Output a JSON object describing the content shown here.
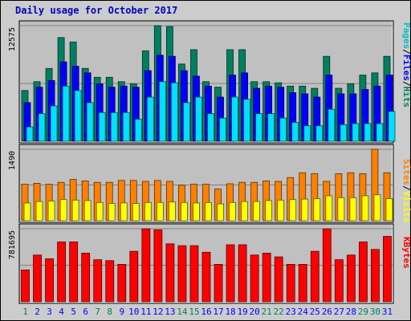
{
  "title": "Daily usage for October 2017",
  "chart_data": [
    {
      "type": "bar",
      "panel": "top",
      "title": "",
      "ylabel_max": "12575",
      "ylim": [
        0,
        12575
      ],
      "side_label": [
        "Pages",
        "/",
        "Files",
        "/",
        "Hits"
      ],
      "side_colors": [
        "#00c0c0",
        "#000000",
        "#0000ff",
        "#000000",
        "#008060"
      ],
      "categories": [
        "1",
        "2",
        "3",
        "4",
        "5",
        "6",
        "7",
        "8",
        "9",
        "10",
        "11",
        "12",
        "13",
        "14",
        "15",
        "16",
        "17",
        "18",
        "19",
        "20",
        "21",
        "22",
        "23",
        "24",
        "25",
        "26",
        "27",
        "28",
        "29",
        "30",
        "31"
      ],
      "category_colors": [
        "#008060",
        "#0000ff",
        "#0000ff",
        "#0000ff",
        "#0000ff",
        "#0000ff",
        "#008060",
        "#008060",
        "#0000ff",
        "#0000ff",
        "#0000ff",
        "#0000ff",
        "#0000ff",
        "#008060",
        "#008060",
        "#0000ff",
        "#0000ff",
        "#0000ff",
        "#0000ff",
        "#0000ff",
        "#008060",
        "#008060",
        "#0000ff",
        "#0000ff",
        "#0000ff",
        "#0000ff",
        "#0000ff",
        "#0000ff",
        "#008060",
        "#008060",
        "#0000ff"
      ],
      "series": [
        {
          "name": "Hits",
          "color": "#008060",
          "values": [
            5520,
            6480,
            7920,
            11280,
            10800,
            7920,
            6960,
            6960,
            6480,
            6240,
            9840,
            12575,
            12480,
            8400,
            9960,
            6480,
            5880,
            9960,
            9960,
            6480,
            6480,
            6360,
            6000,
            6000,
            5760,
            9240,
            5760,
            6240,
            7200,
            7440,
            9240
          ]
        },
        {
          "name": "Files",
          "color": "#0000ff",
          "values": [
            4200,
            5880,
            6600,
            8640,
            8160,
            7440,
            6240,
            5880,
            6000,
            5880,
            7680,
            9360,
            9240,
            7680,
            7080,
            6000,
            4800,
            7200,
            7440,
            5760,
            6000,
            5880,
            5280,
            5160,
            4800,
            7200,
            5160,
            5160,
            5640,
            6000,
            7200
          ]
        },
        {
          "name": "Pages",
          "color": "#00e0ff",
          "values": [
            1560,
            3000,
            3840,
            6000,
            5520,
            4200,
            3120,
            3120,
            3120,
            2400,
            4800,
            6480,
            6360,
            4200,
            4800,
            3000,
            2520,
            4800,
            4560,
            3000,
            3000,
            2520,
            2040,
            1680,
            1680,
            3480,
            1800,
            1920,
            1920,
            1920,
            3240
          ]
        }
      ]
    },
    {
      "type": "bar",
      "panel": "middle",
      "title": "",
      "ylabel_max": "1490",
      "ylim": [
        0,
        1490
      ],
      "side_label": [
        "Sites",
        "/",
        "Visits"
      ],
      "side_colors": [
        "#ff8000",
        "#000000",
        "#ffff00"
      ],
      "categories": [
        "1",
        "2",
        "3",
        "4",
        "5",
        "6",
        "7",
        "8",
        "9",
        "10",
        "11",
        "12",
        "13",
        "14",
        "15",
        "16",
        "17",
        "18",
        "19",
        "20",
        "21",
        "22",
        "23",
        "24",
        "25",
        "26",
        "27",
        "28",
        "29",
        "30",
        "31"
      ],
      "series": [
        {
          "name": "Sites",
          "color": "#ff8000",
          "values": [
            760,
            780,
            760,
            800,
            860,
            830,
            800,
            800,
            840,
            840,
            820,
            840,
            820,
            740,
            760,
            760,
            660,
            770,
            800,
            800,
            830,
            820,
            900,
            1000,
            980,
            820,
            980,
            1000,
            980,
            1490,
            1000
          ]
        },
        {
          "name": "Visits",
          "color": "#ffff00",
          "values": [
            370,
            400,
            410,
            440,
            430,
            420,
            380,
            360,
            370,
            360,
            380,
            380,
            390,
            380,
            370,
            380,
            350,
            380,
            400,
            400,
            420,
            430,
            440,
            450,
            460,
            520,
            480,
            480,
            520,
            540,
            460
          ]
        }
      ]
    },
    {
      "type": "bar",
      "panel": "bottom",
      "title": "",
      "ylabel_max": "781695",
      "ylim": [
        0,
        781695
      ],
      "side_label": [
        "KBytes"
      ],
      "side_colors": [
        "#ff0000"
      ],
      "categories": [
        "1",
        "2",
        "3",
        "4",
        "5",
        "6",
        "7",
        "8",
        "9",
        "10",
        "11",
        "12",
        "13",
        "14",
        "15",
        "16",
        "17",
        "18",
        "19",
        "20",
        "21",
        "22",
        "23",
        "24",
        "25",
        "26",
        "27",
        "28",
        "29",
        "30",
        "31"
      ],
      "series": [
        {
          "name": "KBytes",
          "color": "#ff0000",
          "values": [
            340000,
            500000,
            460000,
            640000,
            640000,
            520000,
            450000,
            440000,
            400000,
            540000,
            780000,
            770000,
            620000,
            600000,
            600000,
            530000,
            400000,
            610000,
            610000,
            500000,
            520000,
            480000,
            400000,
            400000,
            540000,
            780000,
            450000,
            500000,
            640000,
            560000,
            700000
          ]
        }
      ]
    }
  ]
}
